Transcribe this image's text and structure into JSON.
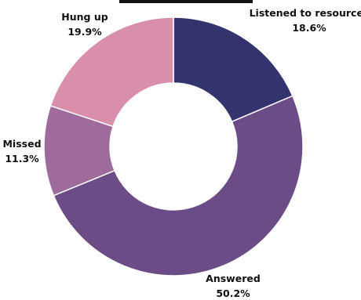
{
  "chart_data": {
    "type": "pie",
    "donut": true,
    "slices": [
      {
        "label": "Listened to resources",
        "value": 18.6,
        "value_label": "18.6%",
        "color": "#33346d"
      },
      {
        "label": "Answered",
        "value": 50.2,
        "value_label": "50.2%",
        "color": "#6c4c86"
      },
      {
        "label": "Missed",
        "value": 11.3,
        "value_label": "11.3%",
        "color": "#9f6b9d"
      },
      {
        "label": "Hung up",
        "value": 19.9,
        "value_label": "19.9%",
        "color": "#d98fab"
      }
    ],
    "start": "top, clockwise",
    "legend": "none"
  }
}
